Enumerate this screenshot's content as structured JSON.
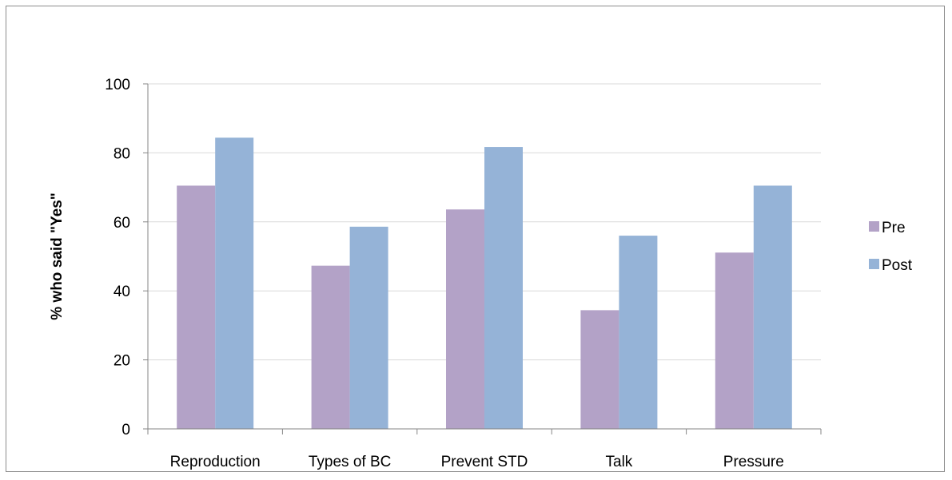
{
  "chart_data": {
    "type": "bar",
    "title": "",
    "xlabel": "",
    "ylabel": "% who said \"Yes\"",
    "categories": [
      "Reproduction",
      "Types of BC",
      "Prevent STD",
      "Talk",
      "Pressure"
    ],
    "series": [
      {
        "name": "Pre",
        "color": "#B3A2C7",
        "values": [
          70.5,
          47.3,
          63.6,
          34.4,
          51.1
        ]
      },
      {
        "name": "Post",
        "color": "#95B3D7",
        "values": [
          84.4,
          58.6,
          81.7,
          56.0,
          70.5
        ]
      }
    ],
    "ylim": [
      0,
      100
    ],
    "yticks": [
      0,
      20,
      40,
      60,
      80,
      100
    ],
    "grid": true,
    "legend": "right",
    "gridline_color": "#D9D9D9",
    "axis_color": "#868686"
  }
}
